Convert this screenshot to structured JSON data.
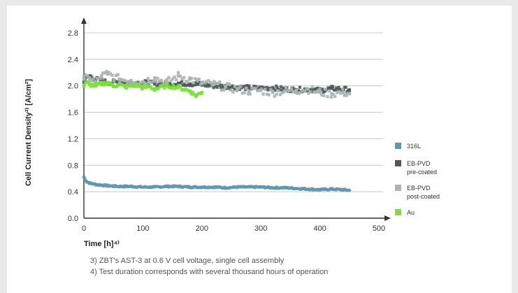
{
  "colors": {
    "axis": "#333333",
    "grid": "#c8c8c8",
    "background": "#ffffff",
    "frame": "#e9e9e9"
  },
  "footnotes": {
    "note3": "3) ZBT's AST-3 at 0.6 V cell voltage, single cell assembly",
    "note4": "4) Test duration corresponds with several thousand hours of operation"
  },
  "chart_data": {
    "type": "scatter",
    "title": "",
    "xlabel": "Time [h]⁴⁾",
    "ylabel": "Cell Current Density³⁾ [A/cm²]",
    "xlim": [
      0,
      500
    ],
    "ylim": [
      0,
      2.8
    ],
    "xticks": [
      0,
      100,
      200,
      300,
      400,
      500
    ],
    "yticks": [
      0.0,
      0.4,
      0.8,
      1.2,
      1.6,
      2.0,
      2.4,
      2.8
    ],
    "xtick_labels": [
      "0",
      "100",
      "200",
      "300",
      "400",
      "500"
    ],
    "ytick_labels": [
      "0.0",
      "0.4",
      "0.8",
      "1.2",
      "1.6",
      "2.0",
      "2.4",
      "2.8"
    ],
    "grid": true,
    "legend_position": "right",
    "series": [
      {
        "name": "316L",
        "color": "#5f97b0",
        "x": [
          0,
          5,
          10,
          20,
          30,
          40,
          60,
          80,
          100,
          120,
          140,
          160,
          180,
          200,
          220,
          240,
          260,
          280,
          300,
          320,
          340,
          360,
          380,
          400,
          420,
          440,
          450
        ],
        "y": [
          0.62,
          0.55,
          0.53,
          0.51,
          0.5,
          0.49,
          0.48,
          0.48,
          0.47,
          0.47,
          0.48,
          0.48,
          0.47,
          0.47,
          0.47,
          0.46,
          0.47,
          0.47,
          0.47,
          0.46,
          0.46,
          0.45,
          0.44,
          0.43,
          0.44,
          0.43,
          0.42
        ]
      },
      {
        "name": "EB-PVD pre-coated",
        "color": "#4a5a5c",
        "x": [
          0,
          10,
          20,
          30,
          40,
          60,
          80,
          100,
          120,
          140,
          160,
          180,
          200,
          220,
          240,
          260,
          280,
          300,
          320,
          340,
          360,
          380,
          400,
          420,
          440,
          450
        ],
        "y": [
          2.08,
          2.15,
          2.1,
          2.08,
          2.05,
          2.06,
          2.04,
          2.05,
          2.03,
          2.02,
          2.04,
          2.03,
          2.02,
          2.0,
          1.99,
          1.98,
          1.97,
          1.96,
          1.97,
          1.95,
          1.94,
          1.95,
          1.93,
          1.96,
          1.95,
          1.94
        ]
      },
      {
        "name": "EB-PVD post-coated",
        "color": "#a8b5b0",
        "x": [
          0,
          10,
          20,
          30,
          40,
          60,
          80,
          100,
          120,
          140,
          160,
          180,
          200,
          220,
          240,
          260,
          280,
          300,
          320,
          340,
          360,
          380,
          400,
          420,
          440,
          450
        ],
        "y": [
          2.1,
          2.12,
          2.05,
          2.15,
          2.18,
          2.1,
          2.08,
          2.06,
          2.12,
          2.05,
          2.15,
          2.1,
          2.04,
          2.02,
          1.98,
          1.95,
          1.92,
          1.93,
          1.9,
          1.92,
          1.93,
          1.95,
          1.9,
          1.88,
          1.9,
          1.88
        ]
      },
      {
        "name": "Au",
        "color": "#7be03a",
        "x": [
          0,
          5,
          10,
          20,
          30,
          40,
          50,
          60,
          70,
          80,
          90,
          100,
          110,
          120,
          140,
          160,
          180,
          190,
          200
        ],
        "y": [
          2.0,
          2.05,
          2.02,
          2.0,
          2.03,
          2.05,
          2.0,
          2.02,
          1.98,
          2.0,
          2.01,
          1.97,
          1.99,
          1.95,
          2.0,
          1.98,
          1.92,
          1.85,
          1.9
        ]
      }
    ],
    "legend": [
      {
        "line1": "316L",
        "line2": ""
      },
      {
        "line1": "EB-PVD",
        "line2": "pre-coated"
      },
      {
        "line1": "EB-PVD",
        "line2": "post-coated"
      },
      {
        "line1": "Au",
        "line2": ""
      }
    ]
  }
}
